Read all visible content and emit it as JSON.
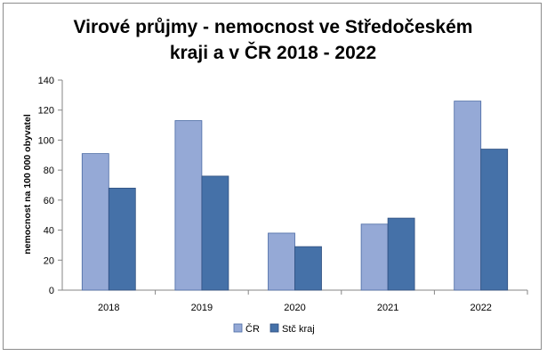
{
  "chart_data": {
    "type": "bar",
    "title_line1": "Virové průjmy - nemocnost ve Středočeském",
    "title_line2": "kraji a v ČR 2018 - 2022",
    "ylabel": "nemocnost na 100 000 obyvatel",
    "xlabel": "",
    "categories": [
      "2018",
      "2019",
      "2020",
      "2021",
      "2022"
    ],
    "series": [
      {
        "name": "ČR",
        "values": [
          91,
          113,
          38,
          44,
          126
        ],
        "color": "#95a9d6",
        "stroke": "#4a6aa4"
      },
      {
        "name": "Stč kraj",
        "values": [
          68,
          76,
          29,
          48,
          94
        ],
        "color": "#4571a8",
        "stroke": "#2f4f7f"
      }
    ],
    "ylim": [
      0,
      140
    ],
    "yticks": [
      "0",
      "20",
      "40",
      "60",
      "80",
      "100",
      "120",
      "140"
    ],
    "grid": false,
    "legend_position": "bottom"
  }
}
